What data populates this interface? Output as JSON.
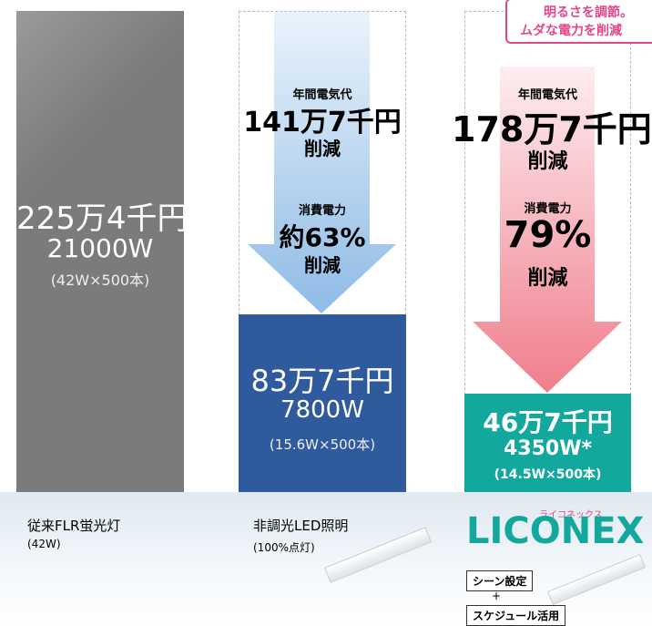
{
  "columns": [
    {
      "amount": "225万4千円",
      "power": "21000W",
      "detail": "(42W×500本)",
      "label": "従来FLR蛍光灯",
      "sub": "(42W)"
    },
    {
      "amount": "83万7千円",
      "power": "7800W",
      "detail": "(15.6W×500本)",
      "label": "非調光LED照明",
      "sub": "(100%点灯)",
      "arrow": {
        "cost_title": "年間電気代",
        "cost": "141万7千円",
        "cost_reduce": "削減",
        "power_title": "消費電力",
        "power": "約63%",
        "power_reduce": "削減"
      }
    },
    {
      "amount": "46万7千円",
      "power": "4350W*",
      "detail": "(14.5W×500本)",
      "arrow": {
        "cost_title": "年間電気代",
        "cost": "178万7千円",
        "cost_reduce": "削減",
        "power_title": "消費電力",
        "power": "79%",
        "power_reduce": "削減"
      },
      "callout": [
        "明るさを調節。",
        "ムダな電力を削減"
      ],
      "logo": {
        "ruby": "ライコネックス",
        "name": "LICONEX"
      },
      "tags": [
        "シーン設定",
        "+",
        "スケジュール活用"
      ]
    }
  ]
}
